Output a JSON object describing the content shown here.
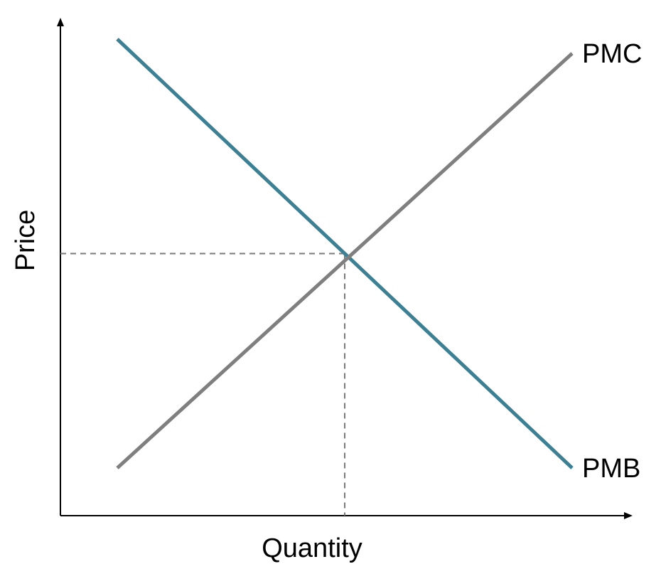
{
  "chart_data": {
    "type": "line",
    "title": "",
    "xlabel": "Quantity",
    "ylabel": "Price",
    "xlim": [
      0,
      10
    ],
    "ylim": [
      0,
      10
    ],
    "grid": false,
    "legend": "none",
    "series": [
      {
        "name": "PMB",
        "color": "#3d7f93",
        "points": [
          [
            1,
            10
          ],
          [
            9,
            1
          ]
        ]
      },
      {
        "name": "PMC",
        "color": "#7f7f7f",
        "points": [
          [
            1,
            1
          ],
          [
            9,
            9.7
          ]
        ]
      }
    ],
    "equilibrium": {
      "x": 5,
      "y": 5.5
    }
  }
}
